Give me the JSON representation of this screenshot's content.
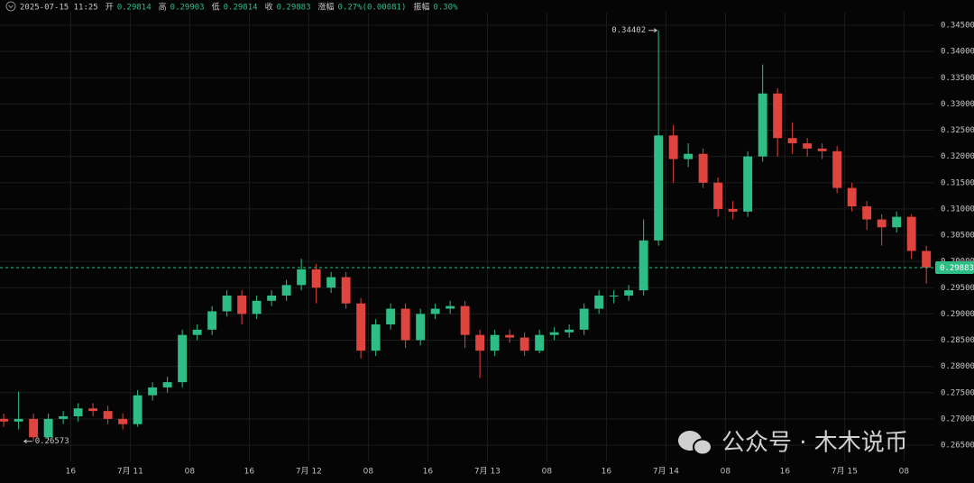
{
  "chart_data": {
    "type": "candlestick",
    "header": {
      "time": "2025-07-15 11:25",
      "fields": [
        {
          "label": "开",
          "value": "0.29814"
        },
        {
          "label": "高",
          "value": "0.29903"
        },
        {
          "label": "低",
          "value": "0.29814"
        },
        {
          "label": "收",
          "value": "0.29883"
        },
        {
          "label": "涨幅",
          "value": "0.27%(0.00081)"
        },
        {
          "label": "振幅",
          "value": "0.30%"
        }
      ]
    },
    "x": [
      7,
      9,
      11,
      13,
      15,
      17,
      19,
      21,
      23,
      25,
      27,
      29,
      31,
      33,
      35,
      37,
      39,
      41,
      43,
      45,
      47,
      49,
      51,
      53,
      55,
      57,
      59,
      61,
      63,
      65,
      67,
      69,
      71,
      73,
      75,
      77,
      79,
      81,
      83,
      85,
      87,
      89,
      91,
      93,
      95,
      97,
      99,
      101,
      103,
      105,
      107,
      109,
      111,
      113,
      115,
      117,
      119,
      121,
      123,
      125,
      127,
      129,
      131
    ],
    "open": [
      0.27,
      0.2695,
      0.27,
      0.2665,
      0.27,
      0.2705,
      0.272,
      0.2715,
      0.27,
      0.269,
      0.2745,
      0.276,
      0.277,
      0.286,
      0.287,
      0.2905,
      0.2935,
      0.29,
      0.2925,
      0.2935,
      0.2955,
      0.2985,
      0.295,
      0.297,
      0.292,
      0.283,
      0.288,
      0.291,
      0.285,
      0.29,
      0.291,
      0.2915,
      0.286,
      0.283,
      0.286,
      0.2855,
      0.283,
      0.286,
      0.2865,
      0.287,
      0.291,
      0.2935,
      0.2935,
      0.2945,
      0.304,
      0.324,
      0.3195,
      0.3205,
      0.315,
      0.31,
      0.3095,
      0.32,
      0.332,
      0.3235,
      0.3225,
      0.3215,
      0.321,
      0.314,
      0.3105,
      0.308,
      0.3065,
      0.3085,
      0.302
    ],
    "high": [
      0.271,
      0.2752,
      0.271,
      0.271,
      0.2715,
      0.273,
      0.273,
      0.2725,
      0.271,
      0.2755,
      0.277,
      0.278,
      0.287,
      0.288,
      0.2915,
      0.2945,
      0.2945,
      0.2935,
      0.2945,
      0.2965,
      0.3005,
      0.2995,
      0.298,
      0.298,
      0.293,
      0.289,
      0.292,
      0.292,
      0.291,
      0.292,
      0.2925,
      0.2925,
      0.287,
      0.287,
      0.287,
      0.2865,
      0.287,
      0.2875,
      0.288,
      0.292,
      0.2945,
      0.2945,
      0.2955,
      0.308,
      0.34402,
      0.326,
      0.3225,
      0.3215,
      0.316,
      0.3115,
      0.321,
      0.3375,
      0.333,
      0.3265,
      0.3235,
      0.3225,
      0.322,
      0.315,
      0.3115,
      0.309,
      0.3095,
      0.309,
      0.303
    ],
    "low": [
      0.2685,
      0.268,
      0.26573,
      0.266,
      0.269,
      0.2695,
      0.2705,
      0.269,
      0.268,
      0.2685,
      0.2735,
      0.275,
      0.276,
      0.285,
      0.286,
      0.2895,
      0.288,
      0.289,
      0.2915,
      0.2925,
      0.2945,
      0.292,
      0.294,
      0.291,
      0.2815,
      0.282,
      0.287,
      0.2835,
      0.284,
      0.289,
      0.29,
      0.2835,
      0.2778,
      0.282,
      0.2845,
      0.282,
      0.2825,
      0.285,
      0.2855,
      0.286,
      0.29,
      0.292,
      0.2925,
      0.2935,
      0.303,
      0.315,
      0.318,
      0.314,
      0.3085,
      0.308,
      0.3085,
      0.319,
      0.32,
      0.3205,
      0.32,
      0.3195,
      0.313,
      0.3095,
      0.306,
      0.303,
      0.3055,
      0.3005,
      0.2958
    ],
    "close": [
      0.2695,
      0.27,
      0.2665,
      0.27,
      0.2705,
      0.272,
      0.2715,
      0.27,
      0.269,
      0.2745,
      0.276,
      0.277,
      0.286,
      0.287,
      0.2905,
      0.2935,
      0.29,
      0.2925,
      0.2935,
      0.2955,
      0.2985,
      0.295,
      0.297,
      0.292,
      0.283,
      0.288,
      0.291,
      0.285,
      0.29,
      0.291,
      0.2915,
      0.286,
      0.283,
      0.286,
      0.2855,
      0.283,
      0.286,
      0.2865,
      0.287,
      0.291,
      0.2935,
      0.2935,
      0.2945,
      0.304,
      0.324,
      0.3195,
      0.3205,
      0.315,
      0.31,
      0.3095,
      0.32,
      0.332,
      0.3235,
      0.3225,
      0.3215,
      0.321,
      0.314,
      0.3105,
      0.308,
      0.3065,
      0.3085,
      0.302,
      0.29883
    ],
    "up_color": "#2ebd85",
    "down_color": "#e0443e",
    "xlim": [
      6.5,
      131.95
    ],
    "ylim": [
      0.265,
      0.345
    ],
    "xticks": [
      {
        "value": 16,
        "label": "16"
      },
      {
        "value": 24,
        "label": "7月 11"
      },
      {
        "value": 32,
        "label": "08"
      },
      {
        "value": 40,
        "label": "16"
      },
      {
        "value": 48,
        "label": "7月 12"
      },
      {
        "value": 56,
        "label": "08"
      },
      {
        "value": 64,
        "label": "16"
      },
      {
        "value": 72,
        "label": "7月 13"
      },
      {
        "value": 80,
        "label": "08"
      },
      {
        "value": 88,
        "label": "16"
      },
      {
        "value": 96,
        "label": "7月 14"
      },
      {
        "value": 104,
        "label": "08"
      },
      {
        "value": 112,
        "label": "16"
      },
      {
        "value": 120,
        "label": "7月 15"
      },
      {
        "value": 128,
        "label": "08"
      }
    ],
    "yticks": [
      {
        "value": 0.265,
        "label": "0.26500"
      },
      {
        "value": 0.27,
        "label": "0.27000"
      },
      {
        "value": 0.275,
        "label": "0.27500"
      },
      {
        "value": 0.28,
        "label": "0.28000"
      },
      {
        "value": 0.285,
        "label": "0.28500"
      },
      {
        "value": 0.29,
        "label": "0.29000"
      },
      {
        "value": 0.295,
        "label": "0.29500"
      },
      {
        "value": 0.3,
        "label": "0.30000"
      },
      {
        "value": 0.305,
        "label": "0.30500"
      },
      {
        "value": 0.31,
        "label": "0.31000"
      },
      {
        "value": 0.315,
        "label": "0.31500"
      },
      {
        "value": 0.32,
        "label": "0.32000"
      },
      {
        "value": 0.325,
        "label": "0.32500"
      },
      {
        "value": 0.33,
        "label": "0.33000"
      },
      {
        "value": 0.335,
        "label": "0.33500"
      },
      {
        "value": 0.34,
        "label": "0.34000"
      },
      {
        "value": 0.345,
        "label": "0.34500"
      }
    ],
    "grid": true,
    "annotations": [
      {
        "value": 0.34402,
        "x": 95,
        "side": "left"
      },
      {
        "value": 0.26573,
        "x": 9.5,
        "side": "right"
      }
    ],
    "last_price": 0.29883,
    "last_color": "#2ebd85",
    "watermark": "公众号 · 木木说币"
  }
}
